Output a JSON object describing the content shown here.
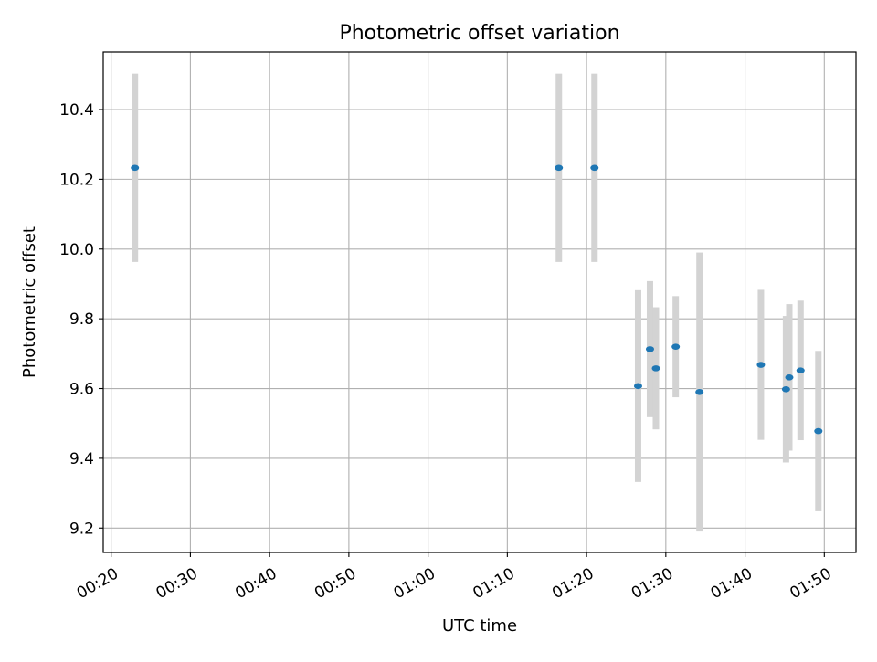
{
  "chart_data": {
    "type": "scatter",
    "title": "Photometric offset variation",
    "xlabel": "UTC time",
    "ylabel": "Photometric offset",
    "x_axis": {
      "type": "time",
      "range": [
        "00:19",
        "01:54"
      ],
      "ticks": [
        "00:20",
        "00:30",
        "00:40",
        "00:50",
        "01:00",
        "01:10",
        "01:20",
        "01:30",
        "01:40",
        "01:50"
      ]
    },
    "y_axis": {
      "range": [
        9.13,
        10.565
      ],
      "ticks": [
        9.2,
        9.4,
        9.6,
        9.8,
        10.0,
        10.2,
        10.4
      ],
      "tick_labels": [
        "9.2",
        "9.4",
        "9.6",
        "9.8",
        "10.0",
        "10.2",
        "10.4"
      ]
    },
    "grid": true,
    "colors": {
      "points": "#1f77b4",
      "error_bars": "#d3d3d3",
      "grid": "#b0b0b0"
    },
    "series": [
      {
        "points": [
          {
            "x": "00:23",
            "y": 10.233,
            "err": 0.27
          },
          {
            "x": "01:16:30",
            "y": 10.233,
            "err": 0.27
          },
          {
            "x": "01:21",
            "y": 10.233,
            "err": 0.27
          },
          {
            "x": "01:26:30",
            "y": 9.607,
            "err": 0.275
          },
          {
            "x": "01:28",
            "y": 9.713,
            "err": 0.195
          },
          {
            "x": "01:28:45",
            "y": 9.658,
            "err": 0.175
          },
          {
            "x": "01:31:15",
            "y": 9.72,
            "err": 0.145
          },
          {
            "x": "01:34:15",
            "y": 9.59,
            "err": 0.4
          },
          {
            "x": "01:42",
            "y": 9.668,
            "err": 0.215
          },
          {
            "x": "01:45:10",
            "y": 9.598,
            "err": 0.21
          },
          {
            "x": "01:45:35",
            "y": 9.632,
            "err": 0.21
          },
          {
            "x": "01:47",
            "y": 9.652,
            "err": 0.2
          },
          {
            "x": "01:49:15",
            "y": 9.478,
            "err": 0.23
          }
        ]
      }
    ]
  }
}
